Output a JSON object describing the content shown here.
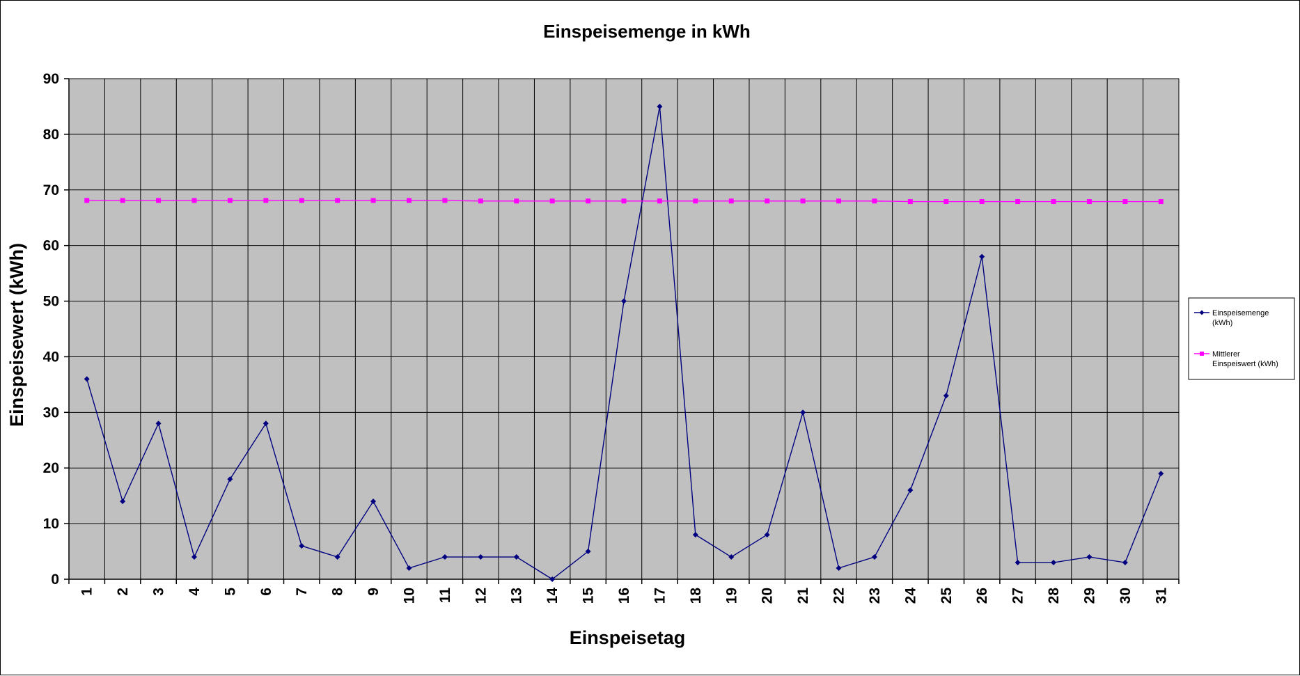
{
  "chart_data": {
    "type": "line",
    "title": "Einspeisemenge in kWh",
    "xlabel": "Einspeisetag",
    "ylabel": "Einspeisewert  (kWh)",
    "x": [
      1,
      2,
      3,
      4,
      5,
      6,
      7,
      8,
      9,
      10,
      11,
      12,
      13,
      14,
      15,
      16,
      17,
      18,
      19,
      20,
      21,
      22,
      23,
      24,
      25,
      26,
      27,
      28,
      29,
      30,
      31
    ],
    "ylim": [
      0,
      90
    ],
    "yticks": [
      0,
      10,
      20,
      30,
      40,
      50,
      60,
      70,
      80,
      90
    ],
    "grid": true,
    "legend_position": "right",
    "plot_background": "#c0c0c0",
    "series": [
      {
        "name": "Einspeisemenge (kWh)",
        "legend_lines": [
          "Einspeisemenge",
          "(kWh)"
        ],
        "color": "#000080",
        "marker": "diamond",
        "values": [
          36,
          14,
          28,
          4,
          18,
          28,
          6,
          4,
          14,
          2,
          4,
          4,
          4,
          0,
          5,
          50,
          85,
          8,
          4,
          8,
          30,
          2,
          4,
          16,
          33,
          58,
          3,
          3,
          4,
          3,
          19
        ]
      },
      {
        "name": "Mittlerer Einspeiswert (kWh)",
        "legend_lines": [
          "Mittlerer",
          "Einspeiswert (kWh)"
        ],
        "color": "#ff00ff",
        "marker": "square",
        "values": [
          68.1,
          68.1,
          68.1,
          68.1,
          68.1,
          68.1,
          68.1,
          68.1,
          68.1,
          68.1,
          68.1,
          68.0,
          68.0,
          68.0,
          68.0,
          68.0,
          68.0,
          68.0,
          68.0,
          68.0,
          68.0,
          68.0,
          68.0,
          67.9,
          67.9,
          67.9,
          67.9,
          67.9,
          67.9,
          67.9,
          67.9
        ]
      }
    ]
  }
}
